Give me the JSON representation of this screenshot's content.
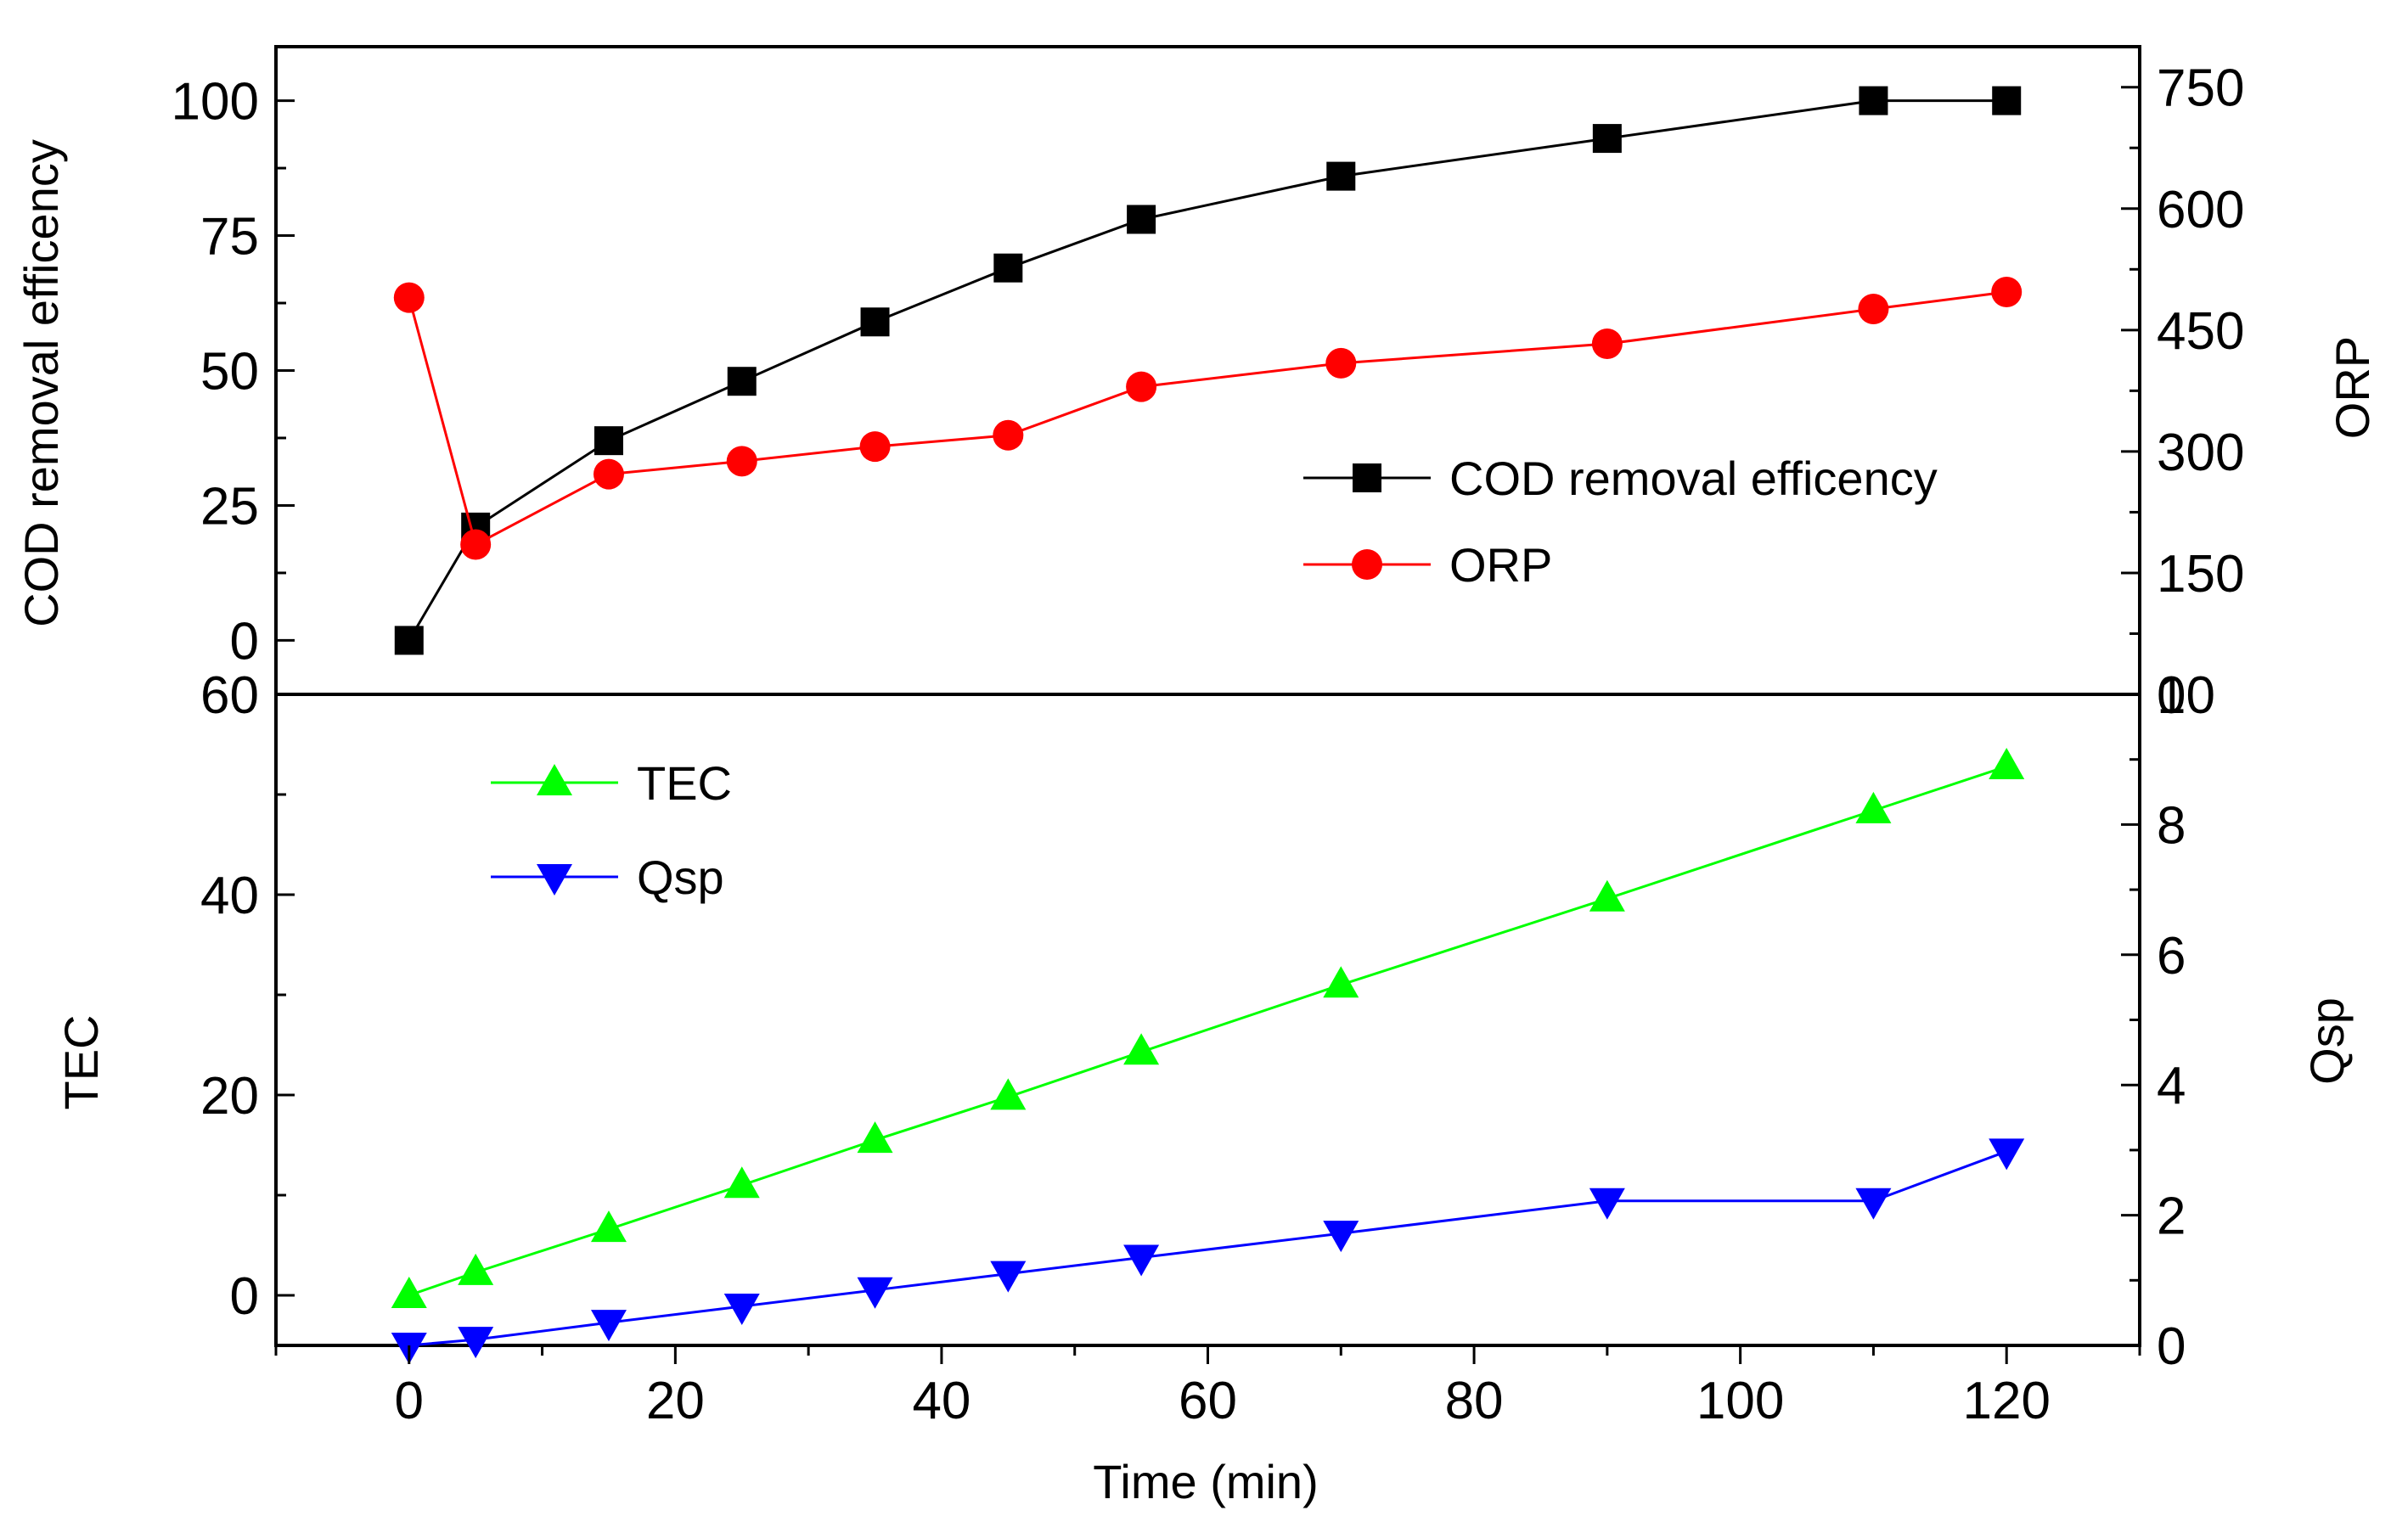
{
  "chart_data": [
    {
      "type": "line",
      "panel": "top",
      "x": [
        0,
        5,
        15,
        25,
        35,
        45,
        55,
        70,
        90,
        110,
        120
      ],
      "xlim": [
        -10,
        130
      ],
      "left_axis": {
        "label": "COD removal efficency",
        "ylim": [
          -10,
          110
        ],
        "ticks": [
          0,
          25,
          50,
          75,
          100
        ],
        "tick_labels": [
          "0",
          "25",
          "50",
          "75",
          "100"
        ]
      },
      "right_axis": {
        "label": "ORP",
        "ylim": [
          0,
          800
        ],
        "ticks": [
          0,
          150,
          300,
          450,
          600,
          750
        ],
        "tick_labels": [
          "0",
          "150",
          "300",
          "450",
          "600",
          "750"
        ]
      },
      "series": [
        {
          "name": "COD removal efficency",
          "axis": "left",
          "marker": "square",
          "color": "#000000",
          "values": [
            0,
            21,
            37,
            48,
            59,
            69,
            78,
            86,
            93,
            100,
            100
          ]
        },
        {
          "name": "ORP",
          "axis": "right",
          "marker": "circle",
          "color": "#ff0000",
          "values": [
            490,
            185,
            272,
            288,
            306,
            320,
            380,
            409,
            433,
            476,
            497
          ]
        }
      ],
      "legend": {
        "placement": "center-right",
        "entries": [
          "COD removal efficency",
          "ORP"
        ]
      }
    },
    {
      "type": "line",
      "panel": "bottom",
      "x": [
        0,
        5,
        15,
        25,
        35,
        45,
        55,
        70,
        90,
        110,
        120
      ],
      "xlim": [
        -10,
        130
      ],
      "xlabel": "Time (min)",
      "xticks": [
        0,
        20,
        40,
        60,
        80,
        100,
        120
      ],
      "xtick_labels": [
        "0",
        "20",
        "40",
        "60",
        "80",
        "100",
        "120"
      ],
      "left_axis": {
        "label": "TEC",
        "ylim": [
          -5,
          60
        ],
        "ticks": [
          0,
          20,
          40,
          60
        ],
        "tick_labels": [
          "0",
          "20",
          "40",
          "60"
        ]
      },
      "right_axis": {
        "label": "Qsp",
        "ylim": [
          0,
          10
        ],
        "ticks": [
          0,
          2,
          4,
          6,
          8,
          10
        ],
        "tick_labels": [
          "0",
          "2",
          "4",
          "6",
          "8",
          "10"
        ]
      },
      "series": [
        {
          "name": "TEC",
          "axis": "left",
          "marker": "triangle-up",
          "color": "#00ff00",
          "values": [
            0,
            2.3,
            6.6,
            11,
            15.5,
            19.8,
            24.3,
            31,
            39.6,
            48.4,
            52.8
          ]
        },
        {
          "name": "Qsp",
          "axis": "right",
          "marker": "triangle-down",
          "color": "#0000ff",
          "values": [
            0,
            0.09,
            0.35,
            0.6,
            0.85,
            1.1,
            1.35,
            1.72,
            2.22,
            2.22,
            2.98
          ]
        }
      ],
      "legend": {
        "placement": "top-left",
        "entries": [
          "TEC",
          "Qsp"
        ]
      }
    }
  ]
}
